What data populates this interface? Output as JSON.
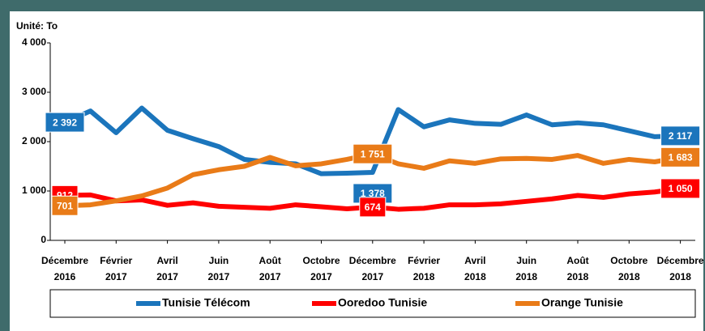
{
  "chart_data": {
    "type": "line",
    "title": "Unité: To",
    "categories": [
      "Décembre 2016",
      null,
      "Février 2017",
      null,
      "Avril 2017",
      null,
      "Juin 2017",
      null,
      "Août 2017",
      null,
      "Octobre 2017",
      null,
      "Décembre 2017",
      null,
      "Février 2018",
      null,
      "Avril 2018",
      null,
      "Juin 2018",
      null,
      "Août 2018",
      null,
      "Octobre 2018",
      null,
      "Décembre 2018"
    ],
    "series": [
      {
        "name": "Tunisie Télécom",
        "color": "#1b75bc",
        "values": [
          2392,
          2620,
          2180,
          2680,
          2230,
          2060,
          1900,
          1640,
          1580,
          1550,
          1350,
          1360,
          1378,
          2650,
          2300,
          2440,
          2370,
          2350,
          2540,
          2340,
          2380,
          2340,
          2220,
          2100,
          2117
        ],
        "value_labels": [
          "2 392",
          null,
          null,
          null,
          null,
          null,
          null,
          null,
          null,
          null,
          null,
          null,
          "1 378",
          null,
          null,
          null,
          null,
          null,
          null,
          null,
          null,
          null,
          null,
          null,
          "2 117"
        ]
      },
      {
        "name": "Ooredoo Tunisie",
        "color": "#ff0000",
        "values": [
          912,
          920,
          800,
          820,
          710,
          760,
          690,
          670,
          650,
          720,
          680,
          640,
          674,
          630,
          650,
          720,
          720,
          740,
          790,
          840,
          910,
          870,
          940,
          980,
          1050
        ],
        "value_labels": [
          "912",
          null,
          null,
          null,
          null,
          null,
          null,
          null,
          null,
          null,
          null,
          null,
          "674",
          null,
          null,
          null,
          null,
          null,
          null,
          null,
          null,
          null,
          null,
          null,
          "1 050"
        ]
      },
      {
        "name": "Orange Tunisie",
        "color": "#e97b18",
        "values": [
          701,
          720,
          800,
          900,
          1060,
          1330,
          1430,
          1500,
          1680,
          1510,
          1550,
          1640,
          1751,
          1550,
          1460,
          1610,
          1560,
          1650,
          1660,
          1640,
          1720,
          1560,
          1640,
          1590,
          1683
        ],
        "value_labels": [
          "701",
          null,
          null,
          null,
          null,
          null,
          null,
          null,
          null,
          null,
          null,
          null,
          "1 751",
          null,
          null,
          null,
          null,
          null,
          null,
          null,
          null,
          null,
          null,
          null,
          "1 683"
        ]
      }
    ],
    "ylim": [
      0,
      4000
    ],
    "yticks": [
      0,
      {
        "value": 1000,
        "label": "1 000"
      },
      {
        "value": 2000,
        "label": "2 000"
      },
      {
        "value": 3000,
        "label": "3 000"
      },
      {
        "value": 4000,
        "label": "4 000"
      }
    ],
    "legend": "bottom"
  }
}
